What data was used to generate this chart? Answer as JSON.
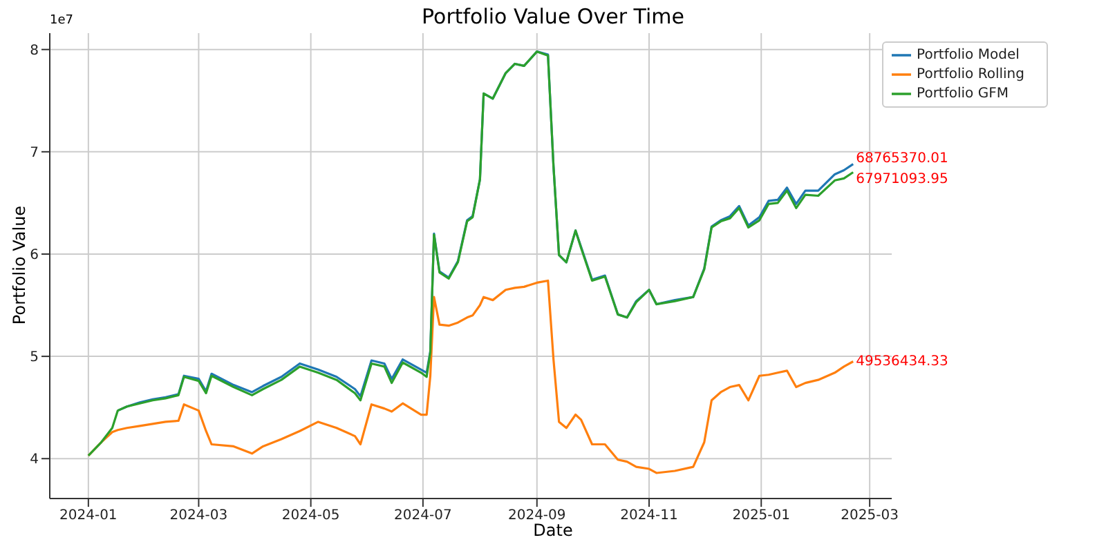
{
  "chart_data": {
    "type": "line",
    "title": "Portfolio Value Over Time",
    "xlabel": "Date",
    "ylabel": "Portfolio Value",
    "x": [
      "2024-01-01",
      "2024-01-08",
      "2024-01-14",
      "2024-01-17",
      "2024-01-22",
      "2024-01-29",
      "2024-02-05",
      "2024-02-12",
      "2024-02-19",
      "2024-02-22",
      "2024-03-01",
      "2024-03-05",
      "2024-03-08",
      "2024-03-20",
      "2024-03-30",
      "2024-04-05",
      "2024-04-15",
      "2024-04-25",
      "2024-05-05",
      "2024-05-15",
      "2024-05-25",
      "2024-05-28",
      "2024-06-03",
      "2024-06-10",
      "2024-06-14",
      "2024-06-20",
      "2024-06-30",
      "2024-07-03",
      "2024-07-05",
      "2024-07-07",
      "2024-07-10",
      "2024-07-15",
      "2024-07-20",
      "2024-07-25",
      "2024-07-28",
      "2024-08-01",
      "2024-08-03",
      "2024-08-08",
      "2024-08-15",
      "2024-08-20",
      "2024-08-25",
      "2024-09-01",
      "2024-09-07",
      "2024-09-10",
      "2024-09-13",
      "2024-09-17",
      "2024-09-22",
      "2024-09-25",
      "2024-10-01",
      "2024-10-08",
      "2024-10-15",
      "2024-10-20",
      "2024-10-25",
      "2024-11-01",
      "2024-11-05",
      "2024-11-15",
      "2024-11-25",
      "2024-12-01",
      "2024-12-05",
      "2024-12-10",
      "2024-12-15",
      "2024-12-20",
      "2024-12-25",
      "2024-12-31",
      "2025-01-05",
      "2025-01-10",
      "2025-01-15",
      "2025-01-20",
      "2025-01-25",
      "2025-02-01",
      "2025-02-10",
      "2025-02-15",
      "2025-02-20"
    ],
    "series": [
      {
        "name": "Portfolio Model",
        "color": "#1f77b4",
        "values": [
          null,
          null,
          null,
          4.47,
          4.51,
          4.55,
          4.58,
          4.6,
          4.63,
          4.81,
          4.78,
          4.66,
          4.83,
          4.72,
          4.65,
          4.71,
          4.8,
          4.93,
          4.87,
          4.8,
          4.68,
          4.61,
          4.96,
          4.93,
          4.78,
          4.97,
          4.87,
          4.84,
          5.05,
          6.2,
          5.83,
          5.77,
          5.93,
          6.33,
          6.37,
          6.73,
          7.57,
          7.52,
          7.77,
          7.86,
          7.84,
          7.98,
          7.95,
          6.86,
          5.99,
          5.92,
          6.23,
          6.07,
          5.75,
          5.79,
          5.41,
          5.38,
          5.54,
          5.65,
          5.51,
          5.55,
          5.58,
          5.86,
          6.27,
          6.33,
          6.37,
          6.47,
          6.28,
          6.36,
          6.52,
          6.53,
          6.65,
          6.49,
          6.62,
          6.62,
          6.78,
          6.82,
          6.88
        ]
      },
      {
        "name": "Portfolio Rolling",
        "color": "#ff7f0e",
        "values": [
          4.03,
          4.16,
          4.26,
          4.28,
          4.3,
          4.32,
          4.34,
          4.36,
          4.37,
          4.53,
          4.47,
          4.27,
          4.14,
          4.12,
          4.05,
          4.12,
          4.19,
          4.27,
          4.36,
          4.3,
          4.22,
          4.14,
          4.53,
          4.49,
          4.46,
          4.54,
          4.43,
          4.43,
          4.81,
          5.58,
          5.31,
          5.3,
          5.33,
          5.38,
          5.4,
          5.5,
          5.58,
          5.55,
          5.65,
          5.67,
          5.68,
          5.72,
          5.74,
          4.97,
          4.36,
          4.3,
          4.43,
          4.38,
          4.14,
          4.14,
          3.99,
          3.97,
          3.92,
          3.9,
          3.86,
          3.88,
          3.92,
          4.16,
          4.57,
          4.65,
          4.7,
          4.72,
          4.57,
          4.81,
          4.82,
          4.84,
          4.86,
          4.7,
          4.74,
          4.77,
          4.84,
          4.9,
          4.95
        ]
      },
      {
        "name": "Portfolio GFM",
        "color": "#2ca02c",
        "values": [
          4.03,
          4.16,
          4.3,
          4.47,
          4.51,
          4.54,
          4.57,
          4.59,
          4.62,
          4.8,
          4.76,
          4.64,
          4.81,
          4.7,
          4.62,
          4.68,
          4.77,
          4.9,
          4.84,
          4.77,
          4.64,
          4.57,
          4.93,
          4.9,
          4.74,
          4.94,
          4.84,
          4.8,
          5.04,
          6.19,
          5.82,
          5.76,
          5.92,
          6.32,
          6.36,
          6.73,
          7.57,
          7.52,
          7.77,
          7.86,
          7.84,
          7.98,
          7.94,
          6.86,
          5.99,
          5.92,
          6.23,
          6.06,
          5.74,
          5.78,
          5.41,
          5.38,
          5.53,
          5.65,
          5.51,
          5.54,
          5.58,
          5.85,
          6.26,
          6.32,
          6.35,
          6.45,
          6.26,
          6.33,
          6.49,
          6.5,
          6.62,
          6.45,
          6.58,
          6.57,
          6.72,
          6.74,
          6.8
        ]
      }
    ],
    "xlim": [
      "2023-12-11",
      "2025-03-13"
    ],
    "xticks": [
      "2024-01",
      "2024-03",
      "2024-05",
      "2024-07",
      "2024-09",
      "2024-11",
      "2025-01",
      "2025-03"
    ],
    "ylim": [
      3.61,
      8.16
    ],
    "yticks": [
      4,
      5,
      6,
      7,
      8
    ],
    "grid": true,
    "legend": "top right",
    "line_style": "solid",
    "annotations": [
      "1e7",
      {
        "text": "68765370.01",
        "x": "2025-02-20",
        "y": 6.88
      },
      {
        "text": "67971093.95",
        "x": "2025-02-20",
        "y": 6.8
      },
      {
        "text": "49536434.33",
        "x": "2025-02-20",
        "y": 4.95
      }
    ]
  }
}
